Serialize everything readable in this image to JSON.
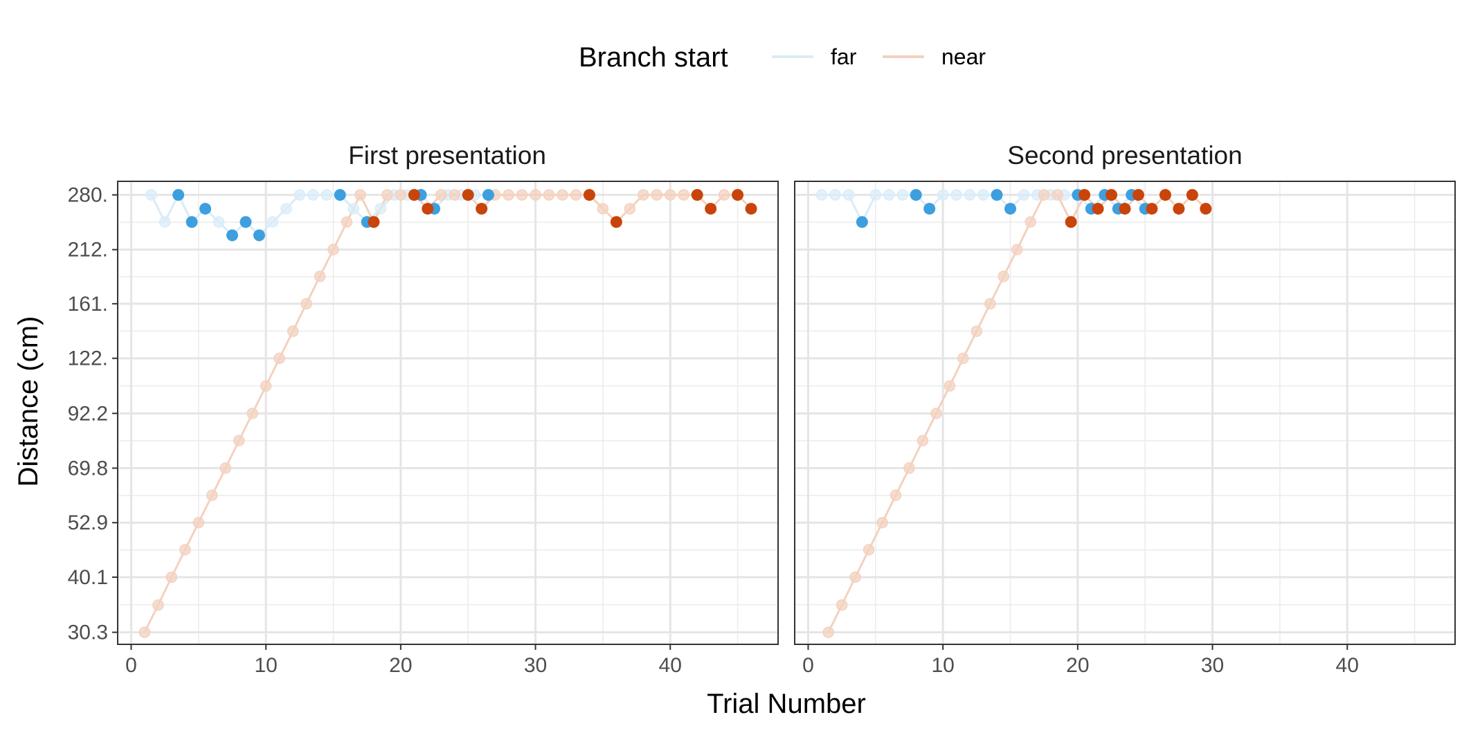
{
  "chart_data": {
    "type": "line",
    "xlabel": "Trial Number",
    "ylabel": "Distance (cm)",
    "legend": {
      "title": "Branch start",
      "position": "top",
      "entries": [
        {
          "name": "far",
          "color": "#8cc5ea"
        },
        {
          "name": "near",
          "color": "#eea07a"
        }
      ]
    },
    "colors": {
      "far_solid": "#3e9fdf",
      "near_solid": "#c9440b",
      "far_faded": "#d9ecf8",
      "near_faded": "#f3d1bf"
    },
    "x_ticks": [
      0,
      10,
      20,
      30,
      40
    ],
    "xlim": [
      -1,
      48
    ],
    "y_scale": "log",
    "y_ticks": [
      30.3,
      40.1,
      52.9,
      69.8,
      92.2,
      122,
      161,
      212,
      280
    ],
    "y_tick_labels": [
      "30.3",
      "40.1",
      "52.9",
      "69.8",
      "92.2",
      "122.",
      "161.",
      "212.",
      "280."
    ],
    "ylim": [
      28.5,
      300
    ],
    "grid": true,
    "panels": [
      {
        "title": "First presentation",
        "series": [
          {
            "name": "far",
            "x": [
              1.5,
              2.5,
              3.5,
              4.5,
              5.5,
              6.5,
              7.5,
              8.5,
              9.5,
              10.5,
              11.5,
              12.5,
              13.5,
              14.5,
              15.5,
              16.5,
              17.5,
              18.5,
              19.5,
              20.5,
              21.5,
              22.5,
              23.5,
              24.5,
              25.5,
              26.5
            ],
            "y": [
              280,
              244,
              280,
              244,
              261,
              244,
              228,
              244,
              228,
              244,
              261,
              280,
              280,
              280,
              280,
              261,
              244,
              261,
              280,
              280,
              280,
              261,
              280,
              280,
              280,
              280
            ],
            "highlight": [
              false,
              false,
              true,
              true,
              true,
              false,
              true,
              true,
              true,
              false,
              false,
              false,
              false,
              false,
              true,
              false,
              true,
              false,
              false,
              false,
              true,
              true,
              false,
              false,
              false,
              true
            ]
          },
          {
            "name": "near",
            "x": [
              1,
              2,
              3,
              4,
              5,
              6,
              7,
              8,
              9,
              10,
              11,
              12,
              13,
              14,
              15,
              16,
              17,
              18,
              19,
              20,
              21,
              22,
              23,
              24,
              25,
              26,
              27,
              28,
              29,
              30,
              31,
              32,
              33,
              34,
              35,
              36,
              37,
              38,
              39,
              40,
              41,
              42,
              43,
              44,
              45,
              46
            ],
            "y": [
              30.3,
              34.8,
              40.1,
              46.1,
              52.9,
              60.8,
              69.8,
              80.3,
              92.2,
              106,
              122,
              140,
              161,
              185,
              212,
              244,
              280,
              244,
              280,
              280,
              280,
              261,
              280,
              280,
              280,
              261,
              280,
              280,
              280,
              280,
              280,
              280,
              280,
              280,
              261,
              244,
              261,
              280,
              280,
              280,
              280,
              280,
              261,
              280,
              280,
              261
            ],
            "highlight": [
              false,
              false,
              false,
              false,
              false,
              false,
              false,
              false,
              false,
              false,
              false,
              false,
              false,
              false,
              false,
              false,
              false,
              true,
              false,
              false,
              true,
              true,
              false,
              false,
              true,
              true,
              false,
              false,
              false,
              false,
              false,
              false,
              false,
              true,
              false,
              true,
              false,
              false,
              false,
              false,
              false,
              true,
              true,
              false,
              true,
              true
            ]
          }
        ]
      },
      {
        "title": "Second presentation",
        "series": [
          {
            "name": "far",
            "x": [
              1,
              2,
              3,
              4,
              5,
              6,
              7,
              8,
              9,
              10,
              11,
              12,
              13,
              14,
              15,
              16,
              17,
              18,
              19,
              20,
              21,
              22,
              23,
              24,
              25
            ],
            "y": [
              280,
              280,
              280,
              244,
              280,
              280,
              280,
              280,
              261,
              280,
              280,
              280,
              280,
              280,
              261,
              280,
              280,
              280,
              280,
              280,
              261,
              280,
              261,
              280,
              261
            ],
            "highlight": [
              false,
              false,
              false,
              true,
              false,
              false,
              false,
              true,
              true,
              false,
              false,
              false,
              false,
              true,
              true,
              false,
              false,
              false,
              false,
              true,
              true,
              true,
              true,
              true,
              true
            ]
          },
          {
            "name": "near",
            "x": [
              1.5,
              2.5,
              3.5,
              4.5,
              5.5,
              6.5,
              7.5,
              8.5,
              9.5,
              10.5,
              11.5,
              12.5,
              13.5,
              14.5,
              15.5,
              16.5,
              17.5,
              18.5,
              19.5,
              20.5,
              21.5,
              22.5,
              23.5,
              24.5,
              25.5,
              26.5,
              27.5,
              28.5,
              29.5
            ],
            "y": [
              30.3,
              34.8,
              40.1,
              46.1,
              52.9,
              60.8,
              69.8,
              80.3,
              92.2,
              106,
              122,
              140,
              161,
              185,
              212,
              244,
              280,
              280,
              244,
              280,
              261,
              280,
              261,
              280,
              261,
              280,
              261,
              280,
              261
            ],
            "highlight": [
              false,
              false,
              false,
              false,
              false,
              false,
              false,
              false,
              false,
              false,
              false,
              false,
              false,
              false,
              false,
              false,
              false,
              false,
              true,
              true,
              true,
              true,
              true,
              true,
              true,
              true,
              true,
              true,
              true
            ]
          }
        ]
      }
    ]
  }
}
